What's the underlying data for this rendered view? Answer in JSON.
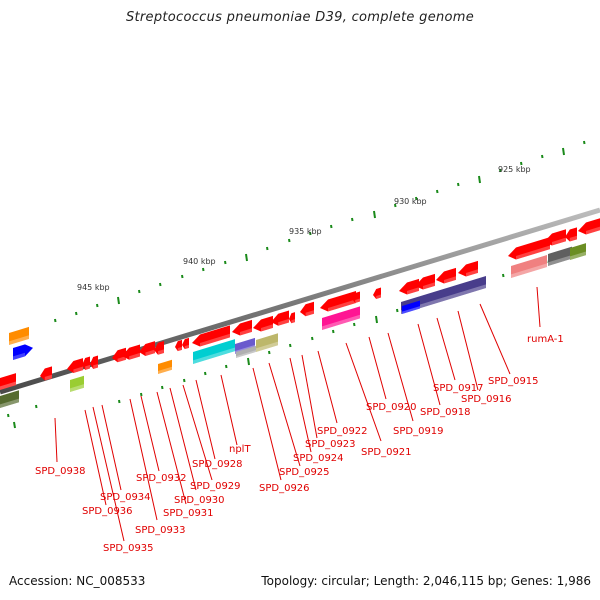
{
  "title": "Streptococcus pneumoniae D39, complete genome",
  "footer": {
    "accession": "Accession: NC_008533",
    "summary": "Topology: circular; Length: 2,046,115 bp; Genes: 1,986"
  },
  "colors": {
    "backbone": "#8a8a8a",
    "tick": "#1a8a1a",
    "label": "#e00000",
    "gene_red": "#ff0000"
  },
  "scale_labels": [
    "925 kbp",
    "930 kbp",
    "935 kbp",
    "940 kbp",
    "945 kbp"
  ],
  "gene_labels": [
    "SPD_0915",
    "rumA-1",
    "SPD_0916",
    "SPD_0917",
    "SPD_0918",
    "SPD_0919",
    "SPD_0920",
    "SPD_0921",
    "SPD_0922",
    "SPD_0923",
    "SPD_0924",
    "SPD_0925",
    "SPD_0926",
    "nplT",
    "SPD_0928",
    "SPD_0929",
    "SPD_0930",
    "SPD_0931",
    "SPD_0932",
    "SPD_0933",
    "SPD_0934",
    "SPD_0935",
    "SPD_0936",
    "SPD_0938"
  ]
}
